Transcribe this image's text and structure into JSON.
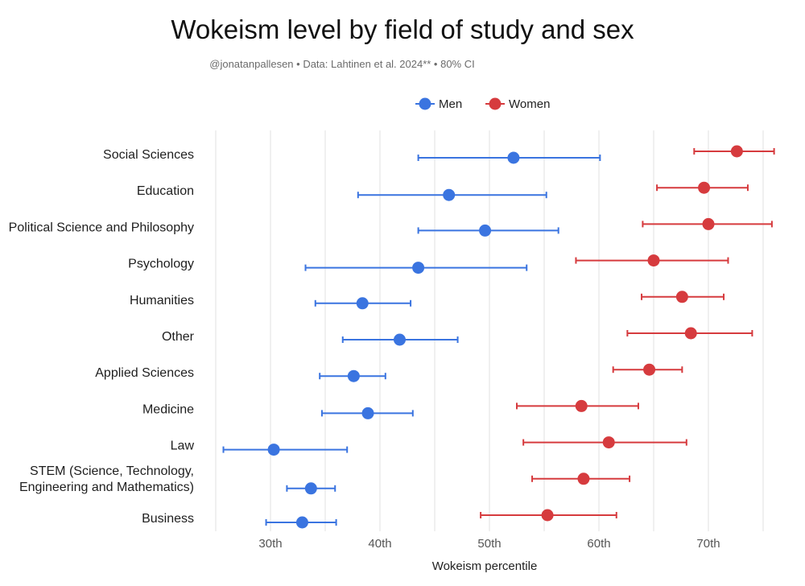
{
  "chart_data": {
    "type": "dot-errorbar",
    "title": "Wokeism level by field of study and sex",
    "subtitle": "@jonatanpallesen  •  Data: Lahtinen et al. 2024**  •  80% CI",
    "xlabel": "Wokeism percentile",
    "ylabel": "",
    "xlim": [
      25,
      77
    ],
    "x_ticks": [
      30,
      40,
      50,
      60,
      70
    ],
    "x_tick_labels": [
      "30th",
      "40th",
      "50th",
      "60th",
      "70th"
    ],
    "grid": true,
    "legend_position": "top-center",
    "categories": [
      "Social Sciences",
      "Education",
      "Political Science and Philosophy",
      "Psychology",
      "Humanities",
      "Other",
      "Applied Sciences",
      "Medicine",
      "Law",
      [
        "STEM (Science, Technology,",
        "Engineering and Mathematics)"
      ],
      "Business"
    ],
    "series": [
      {
        "name": "Men",
        "color": "#3a74e0",
        "values": [
          52.2,
          46.3,
          49.6,
          43.5,
          38.4,
          41.8,
          37.6,
          38.9,
          30.3,
          33.7,
          32.9
        ],
        "ci_low": [
          43.5,
          38.0,
          43.5,
          33.2,
          34.1,
          36.6,
          34.5,
          34.7,
          25.7,
          31.5,
          29.6
        ],
        "ci_high": [
          60.1,
          55.2,
          56.3,
          53.4,
          42.8,
          47.1,
          40.5,
          43.0,
          37.0,
          35.9,
          36.0
        ]
      },
      {
        "name": "Women",
        "color": "#d63b3e",
        "values": [
          72.6,
          69.6,
          70.0,
          65.0,
          67.6,
          68.4,
          64.6,
          58.4,
          60.9,
          58.6,
          55.3
        ],
        "ci_low": [
          68.7,
          65.3,
          64.0,
          57.9,
          63.9,
          62.6,
          61.3,
          52.5,
          53.1,
          53.9,
          49.2
        ],
        "ci_high": [
          76.0,
          73.6,
          75.8,
          71.8,
          71.4,
          74.0,
          67.6,
          63.6,
          68.0,
          62.8,
          61.6
        ]
      }
    ]
  }
}
